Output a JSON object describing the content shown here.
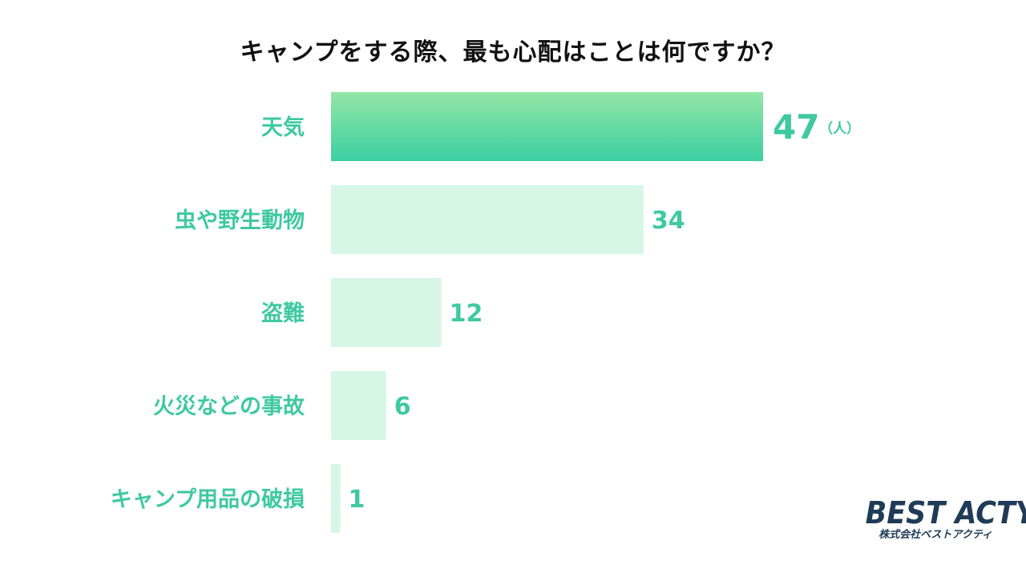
{
  "chart_data": {
    "type": "bar",
    "orientation": "horizontal",
    "title": "キャンプをする際、最も心配はことは何ですか？",
    "categories": [
      "天気",
      "虫や野生動物",
      "盗難",
      "火災などの事故",
      "キャンプ用品の破損"
    ],
    "values": [
      47,
      34,
      12,
      6,
      1
    ],
    "unit_label": "（人）",
    "xlim": [
      0,
      47
    ],
    "grid": false,
    "legend": "none"
  },
  "colors": {
    "top_bar_start": "#93e6a6",
    "top_bar_end": "#3ccfa1",
    "bar": "#d6f7e5",
    "label": "#3ec9a0",
    "title": "#111111",
    "logo": "#1f3b57"
  },
  "logo": {
    "name": "BEST ACTY",
    "subtitle": "株式会社ベストアクティ"
  }
}
